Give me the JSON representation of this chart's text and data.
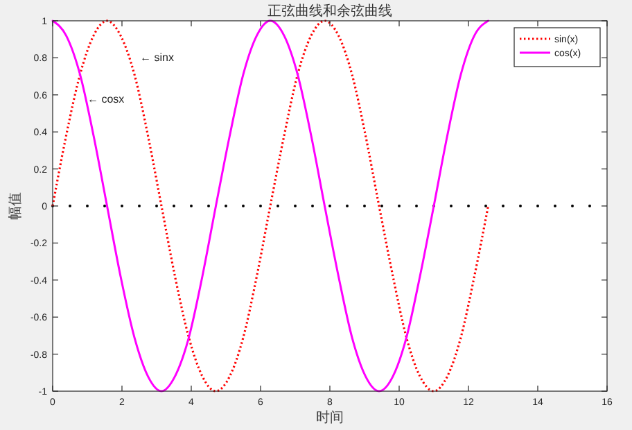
{
  "chart_data": {
    "type": "line",
    "title": "正弦曲线和余弦曲线",
    "xlabel": "时间",
    "ylabel": "幅值",
    "x": [
      0,
      0.39,
      0.79,
      1.18,
      1.57,
      1.96,
      2.36,
      2.75,
      3.14,
      3.53,
      3.93,
      4.32,
      4.71,
      5.11,
      5.5,
      5.89,
      6.28,
      6.68,
      7.07,
      7.46,
      7.85,
      8.25,
      8.64,
      9.03,
      9.42,
      9.82,
      10.21,
      10.6,
      11,
      11.39,
      11.78,
      12.17,
      12.57
    ],
    "series": [
      {
        "name": "sin(x)",
        "color": "#ff0000",
        "line_style": "dotted",
        "values": [
          0,
          0.38,
          0.71,
          0.92,
          1,
          0.92,
          0.71,
          0.38,
          0,
          -0.38,
          -0.71,
          -0.92,
          -1,
          -0.92,
          -0.71,
          -0.38,
          0,
          0.38,
          0.71,
          0.92,
          1,
          0.92,
          0.71,
          0.38,
          0,
          -0.38,
          -0.71,
          -0.92,
          -1,
          -0.92,
          -0.71,
          -0.38,
          0
        ]
      },
      {
        "name": "cos(x)",
        "color": "#ff00ff",
        "line_style": "solid",
        "values": [
          1,
          0.92,
          0.71,
          0.38,
          0,
          -0.38,
          -0.71,
          -0.92,
          -1,
          -0.92,
          -0.71,
          -0.38,
          0,
          0.38,
          0.71,
          0.92,
          1,
          0.92,
          0.71,
          0.38,
          0,
          -0.38,
          -0.71,
          -0.92,
          -1,
          -0.92,
          -0.71,
          -0.38,
          0,
          0.38,
          0.71,
          0.92,
          1
        ]
      }
    ],
    "xlim": [
      0,
      16
    ],
    "xticks": [
      0,
      2,
      4,
      6,
      8,
      10,
      12,
      14,
      16
    ],
    "ylim": [
      -1,
      1
    ],
    "yticks": [
      -1,
      -0.8,
      -0.6,
      -0.4,
      -0.2,
      0,
      0.2,
      0.4,
      0.6,
      0.8,
      1
    ],
    "ref_lines": [
      {
        "axis": "y",
        "value": 0,
        "color": "#000000",
        "line_style": "dotted"
      }
    ],
    "annotations": [
      "← sinx",
      "← cosx"
    ],
    "grid": false,
    "legend": "top right"
  }
}
